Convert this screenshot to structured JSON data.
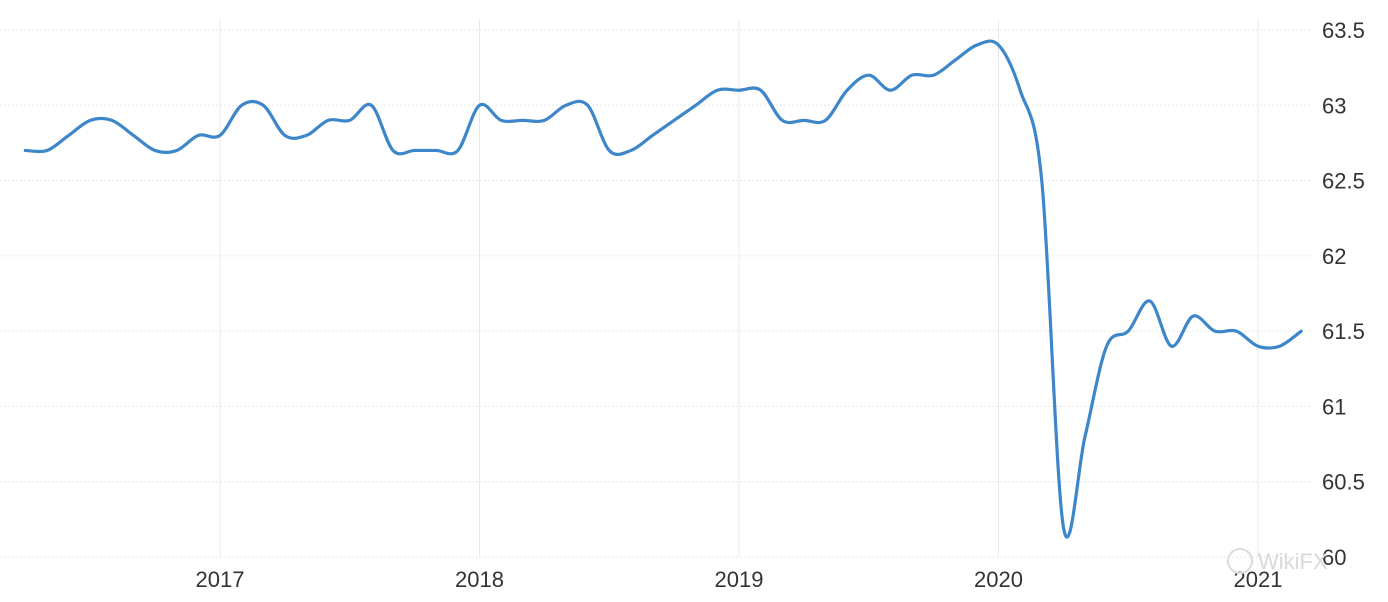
{
  "chart_data": {
    "type": "line",
    "title": "",
    "xlabel": "",
    "ylabel": "",
    "ylim": [
      60,
      63.5
    ],
    "y_axis_side": "right",
    "y_ticks": [
      60,
      60.5,
      61,
      61.5,
      62,
      62.5,
      63,
      63.5
    ],
    "y_tick_labels": [
      "60",
      "60.5",
      "61",
      "61.5",
      "62",
      "62.5",
      "63",
      "63.5"
    ],
    "x_ticks": [
      "2017",
      "2018",
      "2019",
      "2020",
      "2021"
    ],
    "x_range": [
      "2016-04",
      "2021-03"
    ],
    "grid": true,
    "line_color": "#3c86c9",
    "series": [
      {
        "x": [
          "2016-04",
          "2016-05",
          "2016-06",
          "2016-07",
          "2016-08",
          "2016-09",
          "2016-10",
          "2016-11",
          "2016-12",
          "2017-01",
          "2017-02",
          "2017-03",
          "2017-04",
          "2017-05",
          "2017-06",
          "2017-07",
          "2017-08",
          "2017-09",
          "2017-10",
          "2017-11",
          "2017-12",
          "2018-01",
          "2018-02",
          "2018-03",
          "2018-04",
          "2018-05",
          "2018-06",
          "2018-07",
          "2018-08",
          "2018-09",
          "2018-10",
          "2018-11",
          "2018-12",
          "2019-01",
          "2019-02",
          "2019-03",
          "2019-04",
          "2019-05",
          "2019-06",
          "2019-07",
          "2019-08",
          "2019-09",
          "2019-10",
          "2019-11",
          "2019-12",
          "2020-01",
          "2020-02",
          "2020-03",
          "2020-04",
          "2020-05",
          "2020-06",
          "2020-07",
          "2020-08",
          "2020-09",
          "2020-10",
          "2020-11",
          "2020-12",
          "2021-01",
          "2021-02",
          "2021-03"
        ],
        "values": [
          62.7,
          62.7,
          62.8,
          62.9,
          62.9,
          62.8,
          62.7,
          62.7,
          62.8,
          62.8,
          63.0,
          63.0,
          62.8,
          62.8,
          62.9,
          62.9,
          63.0,
          62.7,
          62.7,
          62.7,
          62.7,
          63.0,
          62.9,
          62.9,
          62.9,
          63.0,
          63.0,
          62.7,
          62.7,
          62.8,
          62.9,
          63.0,
          63.1,
          63.1,
          63.1,
          62.9,
          62.9,
          62.9,
          63.1,
          63.2,
          63.1,
          63.2,
          63.2,
          63.3,
          63.4,
          63.4,
          63.1,
          62.5,
          60.2,
          60.8,
          61.4,
          61.5,
          61.7,
          61.4,
          61.6,
          61.5,
          61.5,
          61.4,
          61.4,
          61.5
        ]
      }
    ]
  },
  "watermark": {
    "text": "WikiFX"
  }
}
